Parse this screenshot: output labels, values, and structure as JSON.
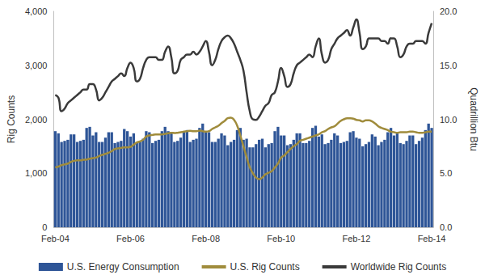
{
  "chart_data": {
    "type": "bar",
    "categories": [
      "Feb-04",
      null,
      null,
      null,
      null,
      null,
      null,
      null,
      null,
      null,
      null,
      null,
      null,
      null,
      null,
      null,
      null,
      null,
      null,
      null,
      null,
      null,
      null,
      null,
      "Feb-06",
      null,
      null,
      null,
      null,
      null,
      null,
      null,
      null,
      null,
      null,
      null,
      null,
      null,
      null,
      null,
      null,
      null,
      null,
      null,
      null,
      null,
      null,
      null,
      "Feb-08",
      null,
      null,
      null,
      null,
      null,
      null,
      null,
      null,
      null,
      null,
      null,
      null,
      null,
      null,
      null,
      null,
      null,
      null,
      null,
      null,
      null,
      null,
      null,
      "Feb-10",
      null,
      null,
      null,
      null,
      null,
      null,
      null,
      null,
      null,
      null,
      null,
      null,
      null,
      null,
      null,
      null,
      null,
      null,
      null,
      null,
      null,
      null,
      null,
      "Feb-12",
      null,
      null,
      null,
      null,
      null,
      null,
      null,
      null,
      null,
      null,
      null,
      null,
      null,
      null,
      null,
      null,
      null,
      null,
      null,
      null,
      null,
      null,
      null,
      "Feb-14"
    ],
    "series": [
      {
        "name": "U.S. Energy Consumption",
        "type": "bar",
        "axis": "y2",
        "color": "#2e5597",
        "values": [
          8.9,
          8.7,
          7.9,
          8.0,
          8.1,
          8.6,
          8.6,
          7.9,
          8.0,
          8.1,
          9.2,
          9.3,
          8.5,
          8.8,
          7.9,
          7.9,
          8.3,
          8.8,
          8.8,
          7.8,
          7.9,
          8.0,
          9.1,
          8.9,
          8.4,
          8.7,
          7.8,
          7.9,
          8.2,
          8.9,
          8.8,
          7.8,
          8.0,
          8.1,
          8.9,
          9.3,
          8.9,
          8.8,
          7.9,
          8.0,
          8.3,
          8.8,
          9.0,
          7.9,
          8.1,
          8.2,
          9.2,
          9.6,
          8.8,
          8.8,
          7.9,
          7.9,
          8.2,
          8.7,
          8.5,
          7.6,
          7.9,
          8.1,
          9.0,
          9.2,
          8.1,
          8.2,
          7.4,
          7.4,
          7.7,
          8.1,
          8.2,
          7.4,
          7.7,
          7.8,
          8.9,
          9.3,
          8.5,
          8.5,
          7.6,
          7.7,
          8.1,
          8.7,
          8.7,
          7.8,
          7.8,
          8.0,
          9.2,
          9.4,
          8.4,
          8.6,
          7.7,
          7.8,
          8.1,
          8.7,
          8.5,
          7.8,
          7.9,
          8.0,
          8.8,
          8.9,
          8.3,
          8.2,
          7.5,
          7.7,
          7.9,
          8.6,
          8.4,
          7.6,
          7.9,
          8.1,
          8.8,
          9.2,
          8.5,
          8.8,
          7.8,
          7.7,
          8.0,
          8.5,
          8.5,
          7.7,
          8.0,
          8.3,
          9.0,
          9.6,
          9.2
        ]
      },
      {
        "name": "U.S. Rig Counts",
        "type": "line",
        "color": "#a08c3c",
        "values": [
          1109,
          1124,
          1150,
          1165,
          1180,
          1210,
          1230,
          1240,
          1240,
          1250,
          1255,
          1270,
          1280,
          1290,
          1320,
          1340,
          1360,
          1380,
          1410,
          1450,
          1460,
          1470,
          1480,
          1480,
          1490,
          1530,
          1570,
          1590,
          1620,
          1680,
          1700,
          1710,
          1720,
          1720,
          1720,
          1730,
          1740,
          1750,
          1745,
          1750,
          1760,
          1770,
          1780,
          1785,
          1780,
          1780,
          1790,
          1780,
          1770,
          1780,
          1820,
          1850,
          1880,
          1930,
          1970,
          2020,
          2031,
          1990,
          1880,
          1700,
          1500,
          1300,
          1110,
          1000,
          920,
          890,
          920,
          980,
          1010,
          1040,
          1110,
          1180,
          1290,
          1330,
          1390,
          1450,
          1500,
          1540,
          1600,
          1620,
          1640,
          1660,
          1680,
          1700,
          1720,
          1760,
          1780,
          1820,
          1850,
          1870,
          1920,
          1970,
          2000,
          2020,
          2020,
          2010,
          1990,
          1980,
          1960,
          1980,
          1980,
          1960,
          1920,
          1870,
          1840,
          1820,
          1800,
          1770,
          1760,
          1750,
          1760,
          1760,
          1760,
          1770,
          1770,
          1760,
          1750,
          1750,
          1760,
          1770,
          1770
        ]
      },
      {
        "name": "Worldwide Rig Counts",
        "type": "line",
        "color": "#3a3a3a",
        "values": [
          2450,
          2400,
          2150,
          2200,
          2300,
          2350,
          2400,
          2450,
          2500,
          2550,
          2550,
          2650,
          2650,
          2550,
          2350,
          2400,
          2500,
          2600,
          2700,
          2750,
          2800,
          2850,
          2800,
          2950,
          3050,
          2950,
          2700,
          2750,
          2950,
          3100,
          3150,
          3150,
          3150,
          3100,
          3100,
          3250,
          3350,
          3150,
          2850,
          2900,
          3100,
          3150,
          3200,
          3200,
          3250,
          3200,
          3250,
          3350,
          3450,
          3250,
          3000,
          3100,
          3300,
          3450,
          3520,
          3550,
          3500,
          3400,
          3250,
          3100,
          2900,
          2500,
          2150,
          2000,
          1990,
          2050,
          2150,
          2250,
          2300,
          2450,
          2500,
          2700,
          2950,
          2800,
          2600,
          2650,
          2850,
          3000,
          3050,
          3100,
          3150,
          3200,
          3150,
          3350,
          3500,
          3200,
          3050,
          3100,
          3300,
          3400,
          3500,
          3550,
          3600,
          3650,
          3550,
          3700,
          3850,
          3600,
          3300,
          3350,
          3500,
          3500,
          3500,
          3500,
          3450,
          3450,
          3400,
          3500,
          3500,
          3350,
          3150,
          3200,
          3350,
          3400,
          3400,
          3450,
          3450,
          3450,
          3400,
          3600,
          3780
        ]
      }
    ],
    "y_label": "Rig Counts",
    "y2_label": "Quadrillion Btu",
    "ylim": [
      0,
      4000
    ],
    "yticks": [
      0,
      {
        "value": 1000,
        "label": "1,000"
      },
      {
        "value": 2000,
        "label": "2,000"
      },
      {
        "value": 3000,
        "label": "3,000"
      },
      {
        "value": 4000,
        "label": "4,000"
      }
    ],
    "y2lim": [
      0,
      20
    ],
    "y2ticks": [
      {
        "value": 0,
        "label": "0.0"
      },
      {
        "value": 5,
        "label": "5.0"
      },
      {
        "value": 10,
        "label": "10.0"
      },
      {
        "value": 15,
        "label": "15.0"
      },
      {
        "value": 20,
        "label": "20.0"
      }
    ],
    "legend": "bottom",
    "grid": false
  }
}
